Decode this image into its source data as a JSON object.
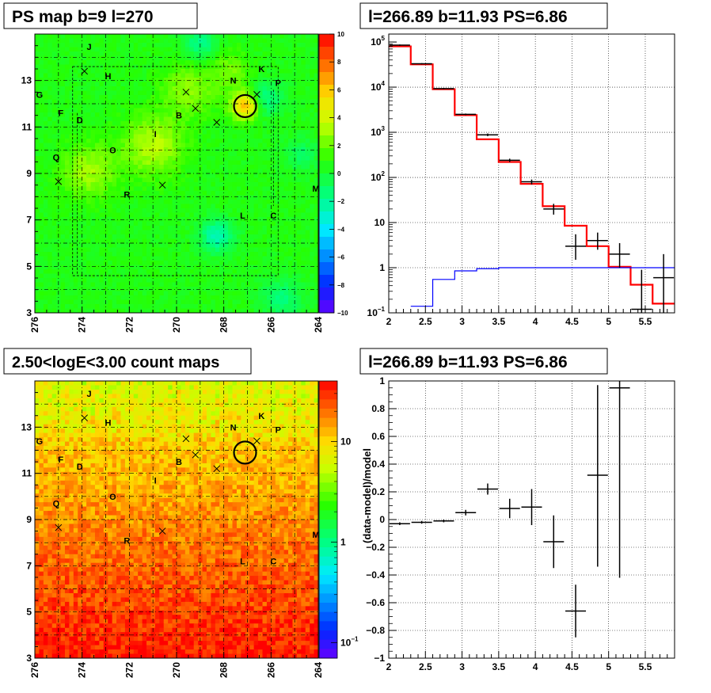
{
  "sources": [
    {
      "name": "J",
      "l": 273.7,
      "b": 14.45
    },
    {
      "name": "H",
      "l": 272.9,
      "b": 13.2
    },
    {
      "name": "G",
      "l": 275.8,
      "b": 12.4
    },
    {
      "name": "F",
      "l": 274.9,
      "b": 11.6
    },
    {
      "name": "D",
      "l": 274.1,
      "b": 11.3
    },
    {
      "name": "Q",
      "l": 275.1,
      "b": 9.7
    },
    {
      "name": "O",
      "l": 272.7,
      "b": 10.0
    },
    {
      "name": "R",
      "l": 272.1,
      "b": 8.1
    },
    {
      "name": "I",
      "l": 270.9,
      "b": 10.7
    },
    {
      "name": "B",
      "l": 269.9,
      "b": 11.5
    },
    {
      "name": "N",
      "l": 267.6,
      "b": 13.0
    },
    {
      "name": "K",
      "l": 266.4,
      "b": 13.5
    },
    {
      "name": "P",
      "l": 265.7,
      "b": 12.9
    },
    {
      "name": "L",
      "l": 267.2,
      "b": 7.2
    },
    {
      "name": "C",
      "l": 265.9,
      "b": 7.2
    },
    {
      "name": "M",
      "l": 264.1,
      "b": 8.35
    }
  ],
  "crosses": [
    {
      "l": 273.9,
      "b": 13.4
    },
    {
      "l": 269.6,
      "b": 12.5
    },
    {
      "l": 269.2,
      "b": 11.8
    },
    {
      "l": 268.3,
      "b": 11.2
    },
    {
      "l": 266.6,
      "b": 12.4
    },
    {
      "l": 275.0,
      "b": 8.65
    },
    {
      "l": 270.6,
      "b": 8.5
    }
  ],
  "circle": {
    "l": 267.1,
    "b": 11.9
  },
  "chart_data": [
    {
      "type": "heatmap",
      "title": "PS map b=9 l=270",
      "x_ticks": [
        "276",
        "274",
        "272",
        "270",
        "268",
        "266",
        "264"
      ],
      "y_ticks": [
        "3",
        "5",
        "7",
        "9",
        "11",
        "13"
      ],
      "xlim": [
        276,
        264
      ],
      "ylim": [
        3,
        15
      ],
      "colorbar_ticks": [
        "10",
        "8",
        "6",
        "4",
        "2",
        "0",
        "−2",
        "−4",
        "−6",
        "−8",
        "−10"
      ],
      "zlim": [
        -10,
        10
      ],
      "color_scale": "rainbow",
      "grid": "dashed"
    },
    {
      "type": "line",
      "title": "l=266.89 b=11.93 PS=6.86",
      "x_ticks": [
        "2",
        "2.5",
        "3",
        "3.5",
        "4",
        "4.5",
        "5",
        "5.5"
      ],
      "xlim": [
        2.0,
        5.9
      ],
      "y_log": true,
      "ylim": [
        0.1,
        150000
      ],
      "y_ticks": [
        "10",
        "1",
        "10"
      ],
      "y_tick_exps": [
        "5",
        "4",
        "3",
        "2",
        "",
        "",
        "−1"
      ],
      "series": [
        {
          "style": "step",
          "color": "#ff0000",
          "edges": [
            2.0,
            2.3,
            2.6,
            2.9,
            3.2,
            3.5,
            3.8,
            4.1,
            4.4,
            4.7,
            5.0,
            5.3,
            5.6,
            5.9
          ],
          "values": [
            80000,
            32000,
            9000,
            2400,
            700,
            220,
            72,
            23,
            8.5,
            3.0,
            1.05,
            0.42,
            0.16
          ]
        },
        {
          "style": "step",
          "color": "#0000ff",
          "edges": [
            2.3,
            2.6,
            2.9,
            3.2,
            3.5,
            3.8,
            4.1,
            4.4,
            4.7,
            5.0,
            5.3,
            5.6,
            5.9
          ],
          "values": [
            0.14,
            0.55,
            0.85,
            0.95,
            1.0,
            1.0,
            1.0,
            1.0,
            1.0,
            1.0,
            1.0,
            1.0
          ]
        },
        {
          "style": "errorbar",
          "color": "#000000",
          "x": [
            2.15,
            2.45,
            2.75,
            3.05,
            3.35,
            3.65,
            3.95,
            4.25,
            4.55,
            4.85,
            5.15,
            5.45,
            5.75
          ],
          "y": [
            85000,
            33000,
            9300,
            2500,
            880,
            240,
            80,
            20,
            3.0,
            4.0,
            2.0,
            0.12,
            0.6
          ],
          "ylo": [
            82000,
            32000,
            9000,
            2400,
            820,
            220,
            70,
            15,
            1.5,
            2.5,
            1.0,
            0.1,
            0.1
          ],
          "yhi": [
            88000,
            34000,
            9600,
            2600,
            940,
            260,
            90,
            26,
            5.5,
            6.0,
            3.5,
            0.9,
            2.0
          ]
        }
      ],
      "grid": "dotted"
    },
    {
      "type": "heatmap",
      "title": "2.50<logE<3.00 count maps",
      "x_ticks": [
        "276",
        "274",
        "272",
        "270",
        "268",
        "266",
        "264"
      ],
      "y_ticks": [
        "3",
        "5",
        "7",
        "9",
        "11",
        "13"
      ],
      "xlim": [
        276,
        264
      ],
      "ylim": [
        3,
        15
      ],
      "colorbar_ticks": [
        "10",
        "1",
        "10"
      ],
      "colorbar_tick_exps": [
        "",
        "",
        "−1"
      ],
      "z_log": true,
      "zlim": [
        0.07,
        40
      ],
      "color_scale": "rainbow",
      "grid": "dashed"
    },
    {
      "type": "scatter",
      "title": "l=266.89 b=11.93 PS=6.86",
      "ylabel": "(data-model)/model",
      "x_ticks": [
        "2",
        "2.5",
        "3",
        "3.5",
        "4",
        "4.5",
        "5",
        "5.5"
      ],
      "xlim": [
        2.0,
        5.9
      ],
      "y_ticks": [
        "1",
        "0.8",
        "0.6",
        "0.4",
        "0.2",
        "0",
        "−0.2",
        "−0.4",
        "−0.6",
        "−0.8",
        "−1"
      ],
      "ylim": [
        -1,
        1
      ],
      "x": [
        2.15,
        2.45,
        2.75,
        3.05,
        3.35,
        3.65,
        3.95,
        4.25,
        4.55,
        4.85,
        5.15
      ],
      "y": [
        -0.03,
        -0.02,
        -0.01,
        0.05,
        0.22,
        0.08,
        0.09,
        -0.16,
        -0.66,
        0.32,
        0.95
      ],
      "yerr_lo": [
        0.01,
        0.01,
        0.01,
        0.02,
        0.04,
        0.07,
        0.13,
        0.19,
        0.19,
        0.66,
        1.37
      ],
      "yerr_hi": [
        0.01,
        0.01,
        0.01,
        0.02,
        0.04,
        0.07,
        0.13,
        0.19,
        0.19,
        0.65,
        0.05
      ],
      "grid": "dotted"
    }
  ]
}
